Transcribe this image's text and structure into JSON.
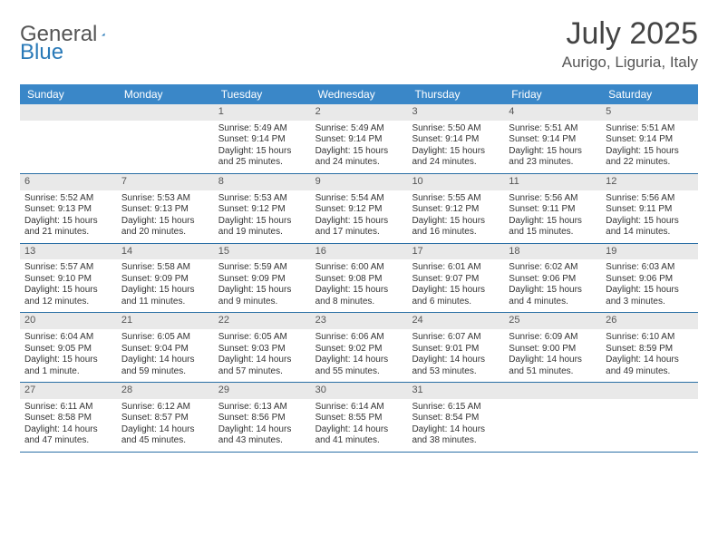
{
  "brand": {
    "part1": "General",
    "part2": "Blue"
  },
  "title": "July 2025",
  "location": "Aurigo, Liguria, Italy",
  "day_headers": [
    "Sunday",
    "Monday",
    "Tuesday",
    "Wednesday",
    "Thursday",
    "Friday",
    "Saturday"
  ],
  "colors": {
    "header_bg": "#3a87c8",
    "header_text": "#ffffff",
    "daynum_bg": "#e9e9e9",
    "week_border": "#2a6fa5",
    "text": "#333333",
    "brand_blue": "#2a7ab8"
  },
  "label_prefixes": {
    "sunrise": "Sunrise: ",
    "sunset": "Sunset: ",
    "daylight": "Daylight: "
  },
  "weeks": [
    [
      null,
      null,
      {
        "n": "1",
        "sr": "5:49 AM",
        "ss": "9:14 PM",
        "dl": "15 hours and 25 minutes."
      },
      {
        "n": "2",
        "sr": "5:49 AM",
        "ss": "9:14 PM",
        "dl": "15 hours and 24 minutes."
      },
      {
        "n": "3",
        "sr": "5:50 AM",
        "ss": "9:14 PM",
        "dl": "15 hours and 24 minutes."
      },
      {
        "n": "4",
        "sr": "5:51 AM",
        "ss": "9:14 PM",
        "dl": "15 hours and 23 minutes."
      },
      {
        "n": "5",
        "sr": "5:51 AM",
        "ss": "9:14 PM",
        "dl": "15 hours and 22 minutes."
      }
    ],
    [
      {
        "n": "6",
        "sr": "5:52 AM",
        "ss": "9:13 PM",
        "dl": "15 hours and 21 minutes."
      },
      {
        "n": "7",
        "sr": "5:53 AM",
        "ss": "9:13 PM",
        "dl": "15 hours and 20 minutes."
      },
      {
        "n": "8",
        "sr": "5:53 AM",
        "ss": "9:12 PM",
        "dl": "15 hours and 19 minutes."
      },
      {
        "n": "9",
        "sr": "5:54 AM",
        "ss": "9:12 PM",
        "dl": "15 hours and 17 minutes."
      },
      {
        "n": "10",
        "sr": "5:55 AM",
        "ss": "9:12 PM",
        "dl": "15 hours and 16 minutes."
      },
      {
        "n": "11",
        "sr": "5:56 AM",
        "ss": "9:11 PM",
        "dl": "15 hours and 15 minutes."
      },
      {
        "n": "12",
        "sr": "5:56 AM",
        "ss": "9:11 PM",
        "dl": "15 hours and 14 minutes."
      }
    ],
    [
      {
        "n": "13",
        "sr": "5:57 AM",
        "ss": "9:10 PM",
        "dl": "15 hours and 12 minutes."
      },
      {
        "n": "14",
        "sr": "5:58 AM",
        "ss": "9:09 PM",
        "dl": "15 hours and 11 minutes."
      },
      {
        "n": "15",
        "sr": "5:59 AM",
        "ss": "9:09 PM",
        "dl": "15 hours and 9 minutes."
      },
      {
        "n": "16",
        "sr": "6:00 AM",
        "ss": "9:08 PM",
        "dl": "15 hours and 8 minutes."
      },
      {
        "n": "17",
        "sr": "6:01 AM",
        "ss": "9:07 PM",
        "dl": "15 hours and 6 minutes."
      },
      {
        "n": "18",
        "sr": "6:02 AM",
        "ss": "9:06 PM",
        "dl": "15 hours and 4 minutes."
      },
      {
        "n": "19",
        "sr": "6:03 AM",
        "ss": "9:06 PM",
        "dl": "15 hours and 3 minutes."
      }
    ],
    [
      {
        "n": "20",
        "sr": "6:04 AM",
        "ss": "9:05 PM",
        "dl": "15 hours and 1 minute."
      },
      {
        "n": "21",
        "sr": "6:05 AM",
        "ss": "9:04 PM",
        "dl": "14 hours and 59 minutes."
      },
      {
        "n": "22",
        "sr": "6:05 AM",
        "ss": "9:03 PM",
        "dl": "14 hours and 57 minutes."
      },
      {
        "n": "23",
        "sr": "6:06 AM",
        "ss": "9:02 PM",
        "dl": "14 hours and 55 minutes."
      },
      {
        "n": "24",
        "sr": "6:07 AM",
        "ss": "9:01 PM",
        "dl": "14 hours and 53 minutes."
      },
      {
        "n": "25",
        "sr": "6:09 AM",
        "ss": "9:00 PM",
        "dl": "14 hours and 51 minutes."
      },
      {
        "n": "26",
        "sr": "6:10 AM",
        "ss": "8:59 PM",
        "dl": "14 hours and 49 minutes."
      }
    ],
    [
      {
        "n": "27",
        "sr": "6:11 AM",
        "ss": "8:58 PM",
        "dl": "14 hours and 47 minutes."
      },
      {
        "n": "28",
        "sr": "6:12 AM",
        "ss": "8:57 PM",
        "dl": "14 hours and 45 minutes."
      },
      {
        "n": "29",
        "sr": "6:13 AM",
        "ss": "8:56 PM",
        "dl": "14 hours and 43 minutes."
      },
      {
        "n": "30",
        "sr": "6:14 AM",
        "ss": "8:55 PM",
        "dl": "14 hours and 41 minutes."
      },
      {
        "n": "31",
        "sr": "6:15 AM",
        "ss": "8:54 PM",
        "dl": "14 hours and 38 minutes."
      },
      null,
      null
    ]
  ]
}
